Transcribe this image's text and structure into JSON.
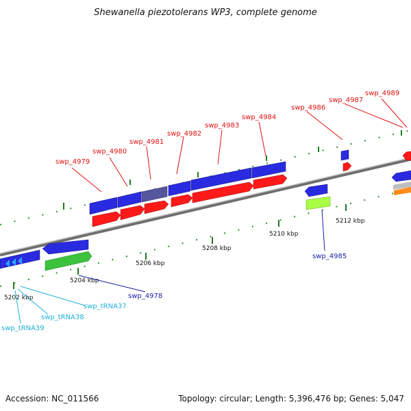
{
  "title": "Shewanella piezotolerans WP3, complete genome",
  "footer": {
    "accession": "Accession: NC_011566",
    "summary": "Topology: circular; Length: 5,396,476 bp; Genes: 5,047"
  },
  "scale": {
    "ticks": [
      "5202 kbp",
      "5204 kbp",
      "5206 kbp",
      "5208 kbp",
      "5210 kbp",
      "5212 kbp"
    ]
  },
  "genes": [
    {
      "id": "swp_4978",
      "color": "#1a1aa8"
    },
    {
      "id": "swp_4979",
      "color": "#e01010"
    },
    {
      "id": "swp_4980",
      "color": "#e01010"
    },
    {
      "id": "swp_4981",
      "color": "#e01010"
    },
    {
      "id": "swp_4982",
      "color": "#e01010"
    },
    {
      "id": "swp_4983",
      "color": "#e01010"
    },
    {
      "id": "swp_4984",
      "color": "#e01010"
    },
    {
      "id": "swp_4985",
      "color": "#1a1aa8"
    },
    {
      "id": "swp_4986",
      "color": "#e01010"
    },
    {
      "id": "swp_4987",
      "color": "#e01010"
    },
    {
      "id": "swp_4989",
      "color": "#e01010"
    },
    {
      "id": "swp_tRNA37",
      "color": "#1eb0d8"
    },
    {
      "id": "swp_tRNA38",
      "color": "#1eb0d8"
    },
    {
      "id": "swp_tRNA39",
      "color": "#1eb0d8"
    }
  ],
  "colors": {
    "cds_forward": "#2a2ae0",
    "gene_forward": "#ff1a1a",
    "rna": "#3cc23c",
    "pseudo": "#56569e",
    "misc": "#aaff44",
    "orange": "#ff8c1a",
    "grey": "#bdbdbd",
    "trna_arrow": "#2aa8ff",
    "backbone": "#8c8c8c",
    "tick": "#1f7a1f"
  }
}
